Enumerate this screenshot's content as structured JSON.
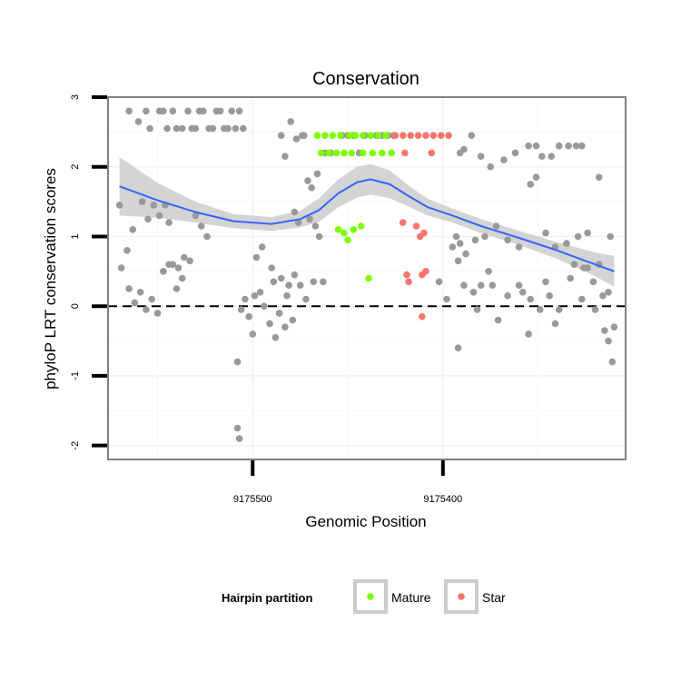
{
  "chart_data": {
    "type": "scatter",
    "title": "Conservation",
    "xlabel": "Genomic Position",
    "ylabel": "phyloP LRT conservation scores",
    "x_reversed": true,
    "xlim": [
      9175576,
      9175304
    ],
    "ylim": [
      -2.2,
      3.0
    ],
    "x_ticks": [
      9175500,
      9175400
    ],
    "x_tick_labels": [
      "9175500",
      "9175400"
    ],
    "y_ticks": [
      -2,
      -1,
      0,
      1,
      2,
      3
    ],
    "y_tick_labels": [
      "-2",
      "-1",
      "0",
      "1",
      "2",
      "3"
    ],
    "grid": true,
    "reference_line": {
      "y": 0,
      "style": "dashed"
    },
    "legend": {
      "title": "Hairpin partition",
      "position": "bottom",
      "entries": [
        {
          "label": "Mature",
          "color": "#7FFF00"
        },
        {
          "label": "Star",
          "color": "#F8766D"
        }
      ]
    },
    "colors": {
      "other": "#999999",
      "smooth_line": "#3366FF",
      "smooth_band": "#CCCCCC"
    },
    "series": [
      {
        "key": "other",
        "points": [
          [
            9175565,
            2.8
          ],
          [
            9175560,
            2.65
          ],
          [
            9175556,
            2.8
          ],
          [
            9175554,
            2.55
          ],
          [
            9175549,
            2.8
          ],
          [
            9175547,
            2.8
          ],
          [
            9175545,
            2.55
          ],
          [
            9175542,
            2.8
          ],
          [
            9175540,
            2.55
          ],
          [
            9175537,
            2.55
          ],
          [
            9175534,
            2.8
          ],
          [
            9175532,
            2.55
          ],
          [
            9175530,
            2.55
          ],
          [
            9175528,
            2.8
          ],
          [
            9175526,
            2.8
          ],
          [
            9175523,
            2.55
          ],
          [
            9175521,
            2.55
          ],
          [
            9175519,
            2.8
          ],
          [
            9175517,
            2.8
          ],
          [
            9175515,
            2.55
          ],
          [
            9175513,
            2.55
          ],
          [
            9175511,
            2.8
          ],
          [
            9175509,
            2.55
          ],
          [
            9175507,
            2.8
          ],
          [
            9175505,
            2.55
          ],
          [
            9175570,
            1.45
          ],
          [
            9175566,
            0.8
          ],
          [
            9175563,
            1.1
          ],
          [
            9175558,
            1.5
          ],
          [
            9175555,
            1.25
          ],
          [
            9175552,
            1.45
          ],
          [
            9175549,
            1.3
          ],
          [
            9175546,
            1.45
          ],
          [
            9175544,
            1.2
          ],
          [
            9175542,
            0.6
          ],
          [
            9175539,
            0.55
          ],
          [
            9175536,
            0.7
          ],
          [
            9175533,
            0.65
          ],
          [
            9175530,
            1.3
          ],
          [
            9175527,
            1.15
          ],
          [
            9175524,
            1.0
          ],
          [
            9175569,
            0.55
          ],
          [
            9175565,
            0.25
          ],
          [
            9175562,
            0.05
          ],
          [
            9175559,
            0.2
          ],
          [
            9175556,
            -0.05
          ],
          [
            9175553,
            0.1
          ],
          [
            9175550,
            -0.1
          ],
          [
            9175547,
            0.5
          ],
          [
            9175544,
            0.6
          ],
          [
            9175540,
            0.25
          ],
          [
            9175537,
            0.4
          ],
          [
            9175506,
            -0.05
          ],
          [
            9175504,
            0.1
          ],
          [
            9175502,
            -0.15
          ],
          [
            9175499,
            0.15
          ],
          [
            9175496,
            0.2
          ],
          [
            9175494,
            0.0
          ],
          [
            9175491,
            -0.25
          ],
          [
            9175489,
            0.35
          ],
          [
            9175486,
            -0.1
          ],
          [
            9175483,
            -0.3
          ],
          [
            9175481,
            0.3
          ],
          [
            9175478,
            0.45
          ],
          [
            9175475,
            0.3
          ],
          [
            9175472,
            0.1
          ],
          [
            9175498,
            0.7
          ],
          [
            9175495,
            0.85
          ],
          [
            9175490,
            0.55
          ],
          [
            9175485,
            0.4
          ],
          [
            9175482,
            0.15
          ],
          [
            9175500,
            -0.4
          ],
          [
            9175488,
            -0.45
          ],
          [
            9175479,
            -0.2
          ],
          [
            9175508,
            -0.8
          ],
          [
            9175508,
            -1.75
          ],
          [
            9175507,
            -1.9
          ],
          [
            9175485,
            2.45
          ],
          [
            9175480,
            2.65
          ],
          [
            9175477,
            2.4
          ],
          [
            9175474,
            2.45
          ],
          [
            9175473,
            2.45
          ],
          [
            9175471,
            1.8
          ],
          [
            9175469,
            1.7
          ],
          [
            9175466,
            1.9
          ],
          [
            9175483,
            2.15
          ],
          [
            9175478,
            1.35
          ],
          [
            9175476,
            1.2
          ],
          [
            9175470,
            1.25
          ],
          [
            9175468,
            0.35
          ],
          [
            9175463,
            0.35
          ],
          [
            9175465,
            1.0
          ],
          [
            9175467,
            1.15
          ],
          [
            9175462,
            2.2
          ],
          [
            9175459,
            2.2
          ],
          [
            9175456,
            2.2
          ],
          [
            9175453,
            2.45
          ],
          [
            9175450,
            2.45
          ],
          [
            9175447,
            2.45
          ],
          [
            9175444,
            2.2
          ],
          [
            9175441,
            2.45
          ],
          [
            9175438,
            2.45
          ],
          [
            9175435,
            2.45
          ],
          [
            9175432,
            2.45
          ],
          [
            9175429,
            2.45
          ],
          [
            9175426,
            2.45
          ],
          [
            9175391,
            2.2
          ],
          [
            9175389,
            2.25
          ],
          [
            9175385,
            2.45
          ],
          [
            9175380,
            2.15
          ],
          [
            9175375,
            2.0
          ],
          [
            9175368,
            2.1
          ],
          [
            9175362,
            2.2
          ],
          [
            9175355,
            2.3
          ],
          [
            9175351,
            2.3
          ],
          [
            9175348,
            2.15
          ],
          [
            9175343,
            2.15
          ],
          [
            9175339,
            2.3
          ],
          [
            9175334,
            2.3
          ],
          [
            9175330,
            2.3
          ],
          [
            9175327,
            2.3
          ],
          [
            9175318,
            1.85
          ],
          [
            9175393,
            1.0
          ],
          [
            9175391,
            0.9
          ],
          [
            9175388,
            0.75
          ],
          [
            9175383,
            0.95
          ],
          [
            9175378,
            1.0
          ],
          [
            9175372,
            1.15
          ],
          [
            9175366,
            0.95
          ],
          [
            9175360,
            0.85
          ],
          [
            9175354,
            1.75
          ],
          [
            9175351,
            1.85
          ],
          [
            9175346,
            1.05
          ],
          [
            9175341,
            0.85
          ],
          [
            9175335,
            0.9
          ],
          [
            9175329,
            1.0
          ],
          [
            9175324,
            1.05
          ],
          [
            9175312,
            1.0
          ],
          [
            9175318,
            0.6
          ],
          [
            9175324,
            0.55
          ],
          [
            9175402,
            0.35
          ],
          [
            9175398,
            0.1
          ],
          [
            9175395,
            0.85
          ],
          [
            9175392,
            0.65
          ],
          [
            9175389,
            0.3
          ],
          [
            9175384,
            0.2
          ],
          [
            9175380,
            0.3
          ],
          [
            9175376,
            0.5
          ],
          [
            9175371,
            -0.2
          ],
          [
            9175366,
            0.15
          ],
          [
            9175360,
            0.3
          ],
          [
            9175354,
            0.1
          ],
          [
            9175349,
            -0.05
          ],
          [
            9175344,
            0.15
          ],
          [
            9175339,
            -0.05
          ],
          [
            9175333,
            0.4
          ],
          [
            9175327,
            0.1
          ],
          [
            9175321,
            0.35
          ],
          [
            9175316,
            0.15
          ],
          [
            9175313,
            0.2
          ],
          [
            9175326,
            0.55
          ],
          [
            9175331,
            0.6
          ],
          [
            9175374,
            0.3
          ],
          [
            9175382,
            -0.05
          ],
          [
            9175358,
            0.2
          ],
          [
            9175346,
            0.35
          ],
          [
            9175392,
            -0.6
          ],
          [
            9175355,
            -0.4
          ],
          [
            9175341,
            -0.25
          ],
          [
            9175320,
            -0.05
          ],
          [
            9175315,
            -0.35
          ],
          [
            9175313,
            -0.5
          ],
          [
            9175311,
            -0.8
          ],
          [
            9175310,
            -0.3
          ]
        ]
      },
      {
        "key": "Mature",
        "name": "Mature",
        "points": [
          [
            9175466,
            2.45
          ],
          [
            9175462,
            2.45
          ],
          [
            9175458,
            2.45
          ],
          [
            9175454,
            2.45
          ],
          [
            9175449,
            2.45
          ],
          [
            9175446,
            2.45
          ],
          [
            9175442,
            2.45
          ],
          [
            9175438,
            2.45
          ],
          [
            9175434,
            2.45
          ],
          [
            9175430,
            2.45
          ],
          [
            9175464,
            2.2
          ],
          [
            9175460,
            2.2
          ],
          [
            9175456,
            2.2
          ],
          [
            9175452,
            2.2
          ],
          [
            9175448,
            2.2
          ],
          [
            9175442,
            2.2
          ],
          [
            9175437,
            2.2
          ],
          [
            9175432,
            2.2
          ],
          [
            9175427,
            2.2
          ],
          [
            9175455,
            1.1
          ],
          [
            9175452,
            1.05
          ],
          [
            9175450,
            0.95
          ],
          [
            9175447,
            1.1
          ],
          [
            9175443,
            1.15
          ],
          [
            9175439,
            0.4
          ]
        ]
      },
      {
        "key": "Star",
        "name": "Star",
        "points": [
          [
            9175425,
            2.45
          ],
          [
            9175421,
            2.45
          ],
          [
            9175417,
            2.45
          ],
          [
            9175413,
            2.45
          ],
          [
            9175409,
            2.45
          ],
          [
            9175405,
            2.45
          ],
          [
            9175401,
            2.45
          ],
          [
            9175397,
            2.45
          ],
          [
            9175420,
            2.2
          ],
          [
            9175406,
            2.2
          ],
          [
            9175421,
            1.2
          ],
          [
            9175414,
            1.15
          ],
          [
            9175412,
            1.0
          ],
          [
            9175410,
            1.05
          ],
          [
            9175409,
            0.5
          ],
          [
            9175419,
            0.45
          ],
          [
            9175418,
            0.35
          ],
          [
            9175411,
            0.45
          ],
          [
            9175411,
            -0.15
          ]
        ]
      }
    ],
    "smooth": {
      "x": [
        9175570,
        9175550,
        9175530,
        9175510,
        9175490,
        9175475,
        9175465,
        9175455,
        9175445,
        9175438,
        9175428,
        9175418,
        9175408,
        9175395,
        9175380,
        9175360,
        9175340,
        9175320,
        9175310
      ],
      "y": [
        1.72,
        1.52,
        1.35,
        1.22,
        1.18,
        1.25,
        1.38,
        1.62,
        1.78,
        1.82,
        1.75,
        1.58,
        1.42,
        1.3,
        1.15,
        0.98,
        0.8,
        0.6,
        0.5
      ],
      "band": [
        0.42,
        0.25,
        0.15,
        0.1,
        0.1,
        0.12,
        0.17,
        0.2,
        0.22,
        0.22,
        0.2,
        0.15,
        0.12,
        0.1,
        0.1,
        0.1,
        0.12,
        0.17,
        0.22
      ]
    }
  }
}
